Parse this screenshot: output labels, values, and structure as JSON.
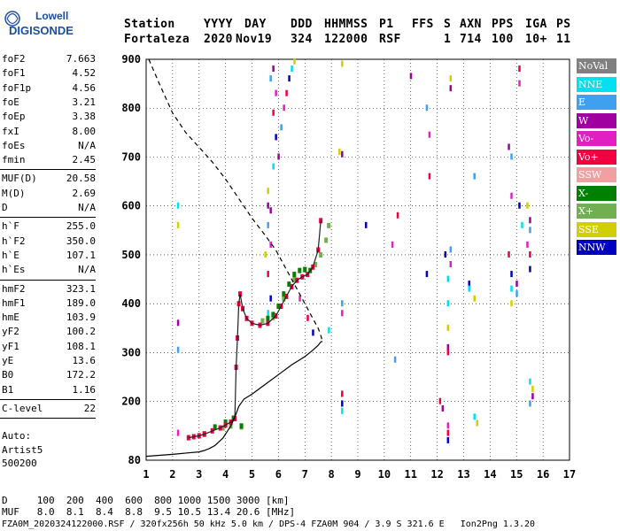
{
  "logo": {
    "line1": "Lowell",
    "line2": "DIGISONDE"
  },
  "header": {
    "labels": [
      "Station",
      "YYYY",
      "DAY",
      "DDD",
      "HHMMSS",
      "P1",
      "FFS",
      "S",
      "AXN",
      "PPS",
      "IGA",
      "PS"
    ],
    "values": [
      "Fortaleza",
      "2020",
      "Nov19",
      "324",
      "122000",
      "RSF",
      "",
      "1",
      "714",
      "100",
      "10+",
      "11"
    ]
  },
  "params_group1": [
    {
      "k": "foF2",
      "v": "7.663"
    },
    {
      "k": "foF1",
      "v": "4.52"
    },
    {
      "k": "foF1p",
      "v": "4.56"
    },
    {
      "k": "foE",
      "v": "3.21"
    },
    {
      "k": "foEp",
      "v": "3.38"
    },
    {
      "k": "fxI",
      "v": "8.00"
    },
    {
      "k": "foEs",
      "v": "N/A"
    },
    {
      "k": "fmin",
      "v": "2.45"
    }
  ],
  "params_group2": [
    {
      "k": "MUF(D)",
      "v": "20.58"
    },
    {
      "k": "M(D)",
      "v": "2.69"
    },
    {
      "k": "D",
      "v": "N/A"
    }
  ],
  "params_group3": [
    {
      "k": "h`F",
      "v": "255.0"
    },
    {
      "k": "h`F2",
      "v": "350.0"
    },
    {
      "k": "h`E",
      "v": "107.1"
    },
    {
      "k": "h`Es",
      "v": "N/A"
    }
  ],
  "params_group4": [
    {
      "k": "hmF2",
      "v": "323.1"
    },
    {
      "k": "hmF1",
      "v": "189.0"
    },
    {
      "k": "hmE",
      "v": "103.9"
    },
    {
      "k": "yF2",
      "v": "100.2"
    },
    {
      "k": "yF1",
      "v": "108.1"
    },
    {
      "k": "yE",
      "v": "13.6"
    },
    {
      "k": "B0",
      "v": "172.2"
    },
    {
      "k": "B1",
      "v": "1.16"
    }
  ],
  "params_group5": [
    {
      "k": "C-level",
      "v": "22"
    }
  ],
  "auto": {
    "line1": "Auto:",
    "line2": "Artist5",
    "line3": "500200"
  },
  "legend": [
    {
      "label": "NoVal",
      "color": "#808080"
    },
    {
      "label": "NNE",
      "color": "#00e0f0"
    },
    {
      "label": "E",
      "color": "#40a0f0"
    },
    {
      "label": "W",
      "color": "#a000a0"
    },
    {
      "label": "Vo-",
      "color": "#e020c0"
    },
    {
      "label": "Vo+",
      "color": "#f00040"
    },
    {
      "label": "SSW",
      "color": "#f0a0a0"
    },
    {
      "label": "X-",
      "color": "#008000"
    },
    {
      "label": "X+",
      "color": "#70b050"
    },
    {
      "label": "SSE",
      "color": "#d0d000"
    },
    {
      "label": "NNW",
      "color": "#0000c0"
    }
  ],
  "footer": {
    "d_row": "D     100  200  400  600  800 1000 1500 3000 [km]",
    "muf_row": "MUF   8.0  8.1  8.4  8.8  9.5 10.5 13.4 20.6 [MHz]",
    "info": "FZA0M_2020324122000.RSF / 320fx256h 50 kHz 5.0 km / DPS-4 FZA0M 904 / 3.9 S 321.6 E   Ion2Png 1.3.20"
  },
  "chart_data": {
    "type": "scatter",
    "xlim": [
      1,
      17
    ],
    "ylim": [
      80,
      900
    ],
    "x_ticks": [
      1,
      2,
      3,
      4,
      5,
      6,
      7,
      8,
      9,
      10,
      11,
      12,
      13,
      14,
      15,
      16,
      17
    ],
    "y_ticks": [
      80,
      200,
      300,
      400,
      500,
      600,
      700,
      800,
      900
    ],
    "grid": true,
    "ordinary_trace_vo_plus": [
      [
        2.6,
        126
      ],
      [
        2.8,
        128
      ],
      [
        3.0,
        130
      ],
      [
        3.2,
        133
      ],
      [
        3.5,
        140
      ],
      [
        3.8,
        146
      ],
      [
        4.0,
        152
      ],
      [
        4.2,
        158
      ],
      [
        4.35,
        165
      ],
      [
        4.4,
        270
      ],
      [
        4.45,
        330
      ],
      [
        4.5,
        400
      ],
      [
        4.55,
        420
      ],
      [
        4.65,
        390
      ],
      [
        4.8,
        370
      ],
      [
        5.0,
        360
      ],
      [
        5.3,
        356
      ],
      [
        5.6,
        360
      ],
      [
        5.9,
        375
      ],
      [
        6.1,
        395
      ],
      [
        6.3,
        415
      ],
      [
        6.5,
        435
      ],
      [
        6.7,
        448
      ],
      [
        6.9,
        455
      ],
      [
        7.1,
        460
      ],
      [
        7.3,
        475
      ],
      [
        7.5,
        510
      ],
      [
        7.6,
        570
      ]
    ],
    "extraordinary_trace_x_minus": [
      [
        3.2,
        134
      ],
      [
        3.6,
        148
      ],
      [
        4.0,
        158
      ],
      [
        4.3,
        166
      ],
      [
        4.6,
        150
      ],
      [
        5.6,
        370
      ],
      [
        5.8,
        378
      ],
      [
        6.0,
        395
      ],
      [
        6.2,
        420
      ],
      [
        6.4,
        440
      ],
      [
        6.6,
        460
      ],
      [
        6.8,
        468
      ],
      [
        7.0,
        470
      ],
      [
        7.2,
        468
      ]
    ],
    "extraordinary_trace_x_plus": [
      [
        3.9,
        146
      ],
      [
        4.2,
        150
      ],
      [
        4.6,
        148
      ],
      [
        5.4,
        365
      ],
      [
        5.8,
        372
      ],
      [
        6.2,
        410
      ],
      [
        6.6,
        450
      ],
      [
        7.0,
        470
      ],
      [
        7.4,
        480
      ],
      [
        7.6,
        500
      ],
      [
        7.8,
        530
      ],
      [
        7.9,
        560
      ]
    ],
    "scattered_echoes": [
      [
        5.6,
        600
      ],
      [
        5.6,
        560
      ],
      [
        5.7,
        520
      ],
      [
        5.6,
        460
      ],
      [
        5.7,
        410
      ],
      [
        5.6,
        380
      ],
      [
        5.5,
        500
      ],
      [
        6.0,
        700
      ],
      [
        6.1,
        760
      ],
      [
        6.2,
        800
      ],
      [
        6.3,
        830
      ],
      [
        6.4,
        860
      ],
      [
        6.5,
        880
      ],
      [
        6.6,
        895
      ],
      [
        5.8,
        880
      ],
      [
        5.7,
        860
      ],
      [
        5.9,
        830
      ],
      [
        5.8,
        790
      ],
      [
        5.9,
        740
      ],
      [
        5.8,
        680
      ],
      [
        5.6,
        630
      ],
      [
        5.7,
        590
      ],
      [
        8.4,
        400
      ],
      [
        8.4,
        380
      ],
      [
        8.4,
        215
      ],
      [
        8.4,
        195
      ],
      [
        8.4,
        180
      ],
      [
        8.4,
        890
      ],
      [
        8.4,
        705
      ],
      [
        11.6,
        800
      ],
      [
        11.7,
        745
      ],
      [
        11.7,
        660
      ],
      [
        11.6,
        460
      ],
      [
        12.4,
        400
      ],
      [
        12.4,
        350
      ],
      [
        12.4,
        310
      ],
      [
        12.5,
        510
      ],
      [
        12.5,
        480
      ],
      [
        12.4,
        300
      ],
      [
        13.2,
        440
      ],
      [
        13.2,
        430
      ],
      [
        13.4,
        410
      ],
      [
        14.7,
        720
      ],
      [
        14.8,
        700
      ],
      [
        14.8,
        620
      ],
      [
        14.7,
        500
      ],
      [
        14.8,
        460
      ],
      [
        14.8,
        430
      ],
      [
        14.8,
        400
      ],
      [
        15.0,
        440
      ],
      [
        15.0,
        420
      ],
      [
        15.1,
        850
      ],
      [
        15.1,
        880
      ],
      [
        15.1,
        600
      ],
      [
        15.2,
        560
      ],
      [
        15.4,
        600
      ],
      [
        15.5,
        570
      ],
      [
        15.5,
        550
      ],
      [
        15.4,
        520
      ],
      [
        15.5,
        500
      ],
      [
        15.5,
        470
      ],
      [
        15.5,
        240
      ],
      [
        15.6,
        225
      ],
      [
        15.6,
        210
      ],
      [
        15.5,
        195
      ],
      [
        12.4,
        150
      ],
      [
        12.4,
        135
      ],
      [
        12.4,
        120
      ],
      [
        13.4,
        168
      ],
      [
        13.5,
        155
      ],
      [
        12.2,
        185
      ],
      [
        10.4,
        285
      ],
      [
        10.3,
        520
      ],
      [
        10.5,
        580
      ],
      [
        9.3,
        560
      ],
      [
        2.2,
        600
      ],
      [
        2.2,
        560
      ],
      [
        2.2,
        360
      ],
      [
        2.2,
        305
      ],
      [
        2.2,
        135
      ],
      [
        12.1,
        200
      ],
      [
        12.3,
        500
      ],
      [
        12.4,
        450
      ],
      [
        12.5,
        860
      ],
      [
        12.5,
        840
      ],
      [
        13.4,
        660
      ],
      [
        6.8,
        410
      ],
      [
        7.1,
        370
      ],
      [
        7.3,
        340
      ],
      [
        7.9,
        345
      ],
      [
        8.3,
        710
      ],
      [
        11.0,
        865
      ]
    ],
    "true_height_profile": [
      [
        1.0,
        88
      ],
      [
        2.0,
        92
      ],
      [
        2.6,
        95
      ],
      [
        3.0,
        97
      ],
      [
        3.2,
        100
      ],
      [
        3.4,
        104
      ],
      [
        3.6,
        110
      ],
      [
        3.9,
        125
      ],
      [
        4.2,
        150
      ],
      [
        4.4,
        175
      ],
      [
        4.5,
        190
      ],
      [
        4.7,
        205
      ],
      [
        5.0,
        215
      ],
      [
        5.5,
        235
      ],
      [
        6.0,
        255
      ],
      [
        6.5,
        275
      ],
      [
        7.0,
        292
      ],
      [
        7.3,
        305
      ],
      [
        7.5,
        315
      ],
      [
        7.6,
        322
      ],
      [
        7.663,
        323
      ]
    ],
    "model_profile_dashed": [
      [
        1.1,
        900
      ],
      [
        1.5,
        850
      ],
      [
        2.0,
        790
      ],
      [
        2.5,
        750
      ],
      [
        3.0,
        720
      ],
      [
        3.5,
        690
      ],
      [
        4.0,
        655
      ],
      [
        4.5,
        615
      ],
      [
        5.0,
        575
      ],
      [
        5.5,
        540
      ],
      [
        5.9,
        510
      ],
      [
        6.3,
        470
      ],
      [
        6.7,
        430
      ],
      [
        7.0,
        400
      ],
      [
        7.3,
        370
      ],
      [
        7.5,
        350
      ],
      [
        7.6,
        335
      ],
      [
        7.663,
        323
      ]
    ]
  }
}
